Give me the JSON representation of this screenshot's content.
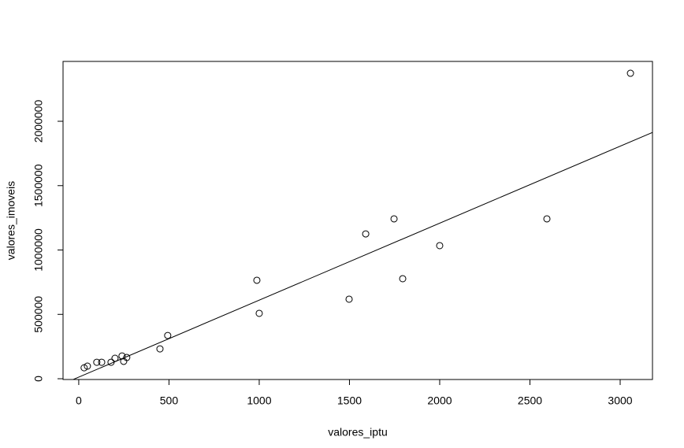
{
  "chart_data": {
    "type": "scatter",
    "xlabel": "valores_iptu",
    "ylabel": "valores_imoveis",
    "x": [
      30,
      48,
      100,
      127,
      179,
      201,
      240,
      249,
      266,
      450,
      493,
      987,
      1000,
      1498,
      1590,
      1747,
      1795,
      2000,
      2594,
      3057
    ],
    "y": [
      85000,
      98000,
      128000,
      128000,
      128000,
      159000,
      177000,
      135000,
      165000,
      232000,
      336000,
      765000,
      508000,
      618000,
      1125000,
      1242000,
      777000,
      1034000,
      1242000,
      2373000
    ],
    "color": "#000000",
    "xlim": [
      -87,
      3179
    ],
    "ylim": [
      -6000,
      2465000
    ],
    "xticks": [
      0,
      500,
      1000,
      1500,
      2000,
      2500,
      3000
    ],
    "yticks": [
      0,
      500000,
      1000000,
      1500000,
      2000000
    ],
    "abline": {
      "intercept": 12500,
      "slope": 598
    }
  }
}
